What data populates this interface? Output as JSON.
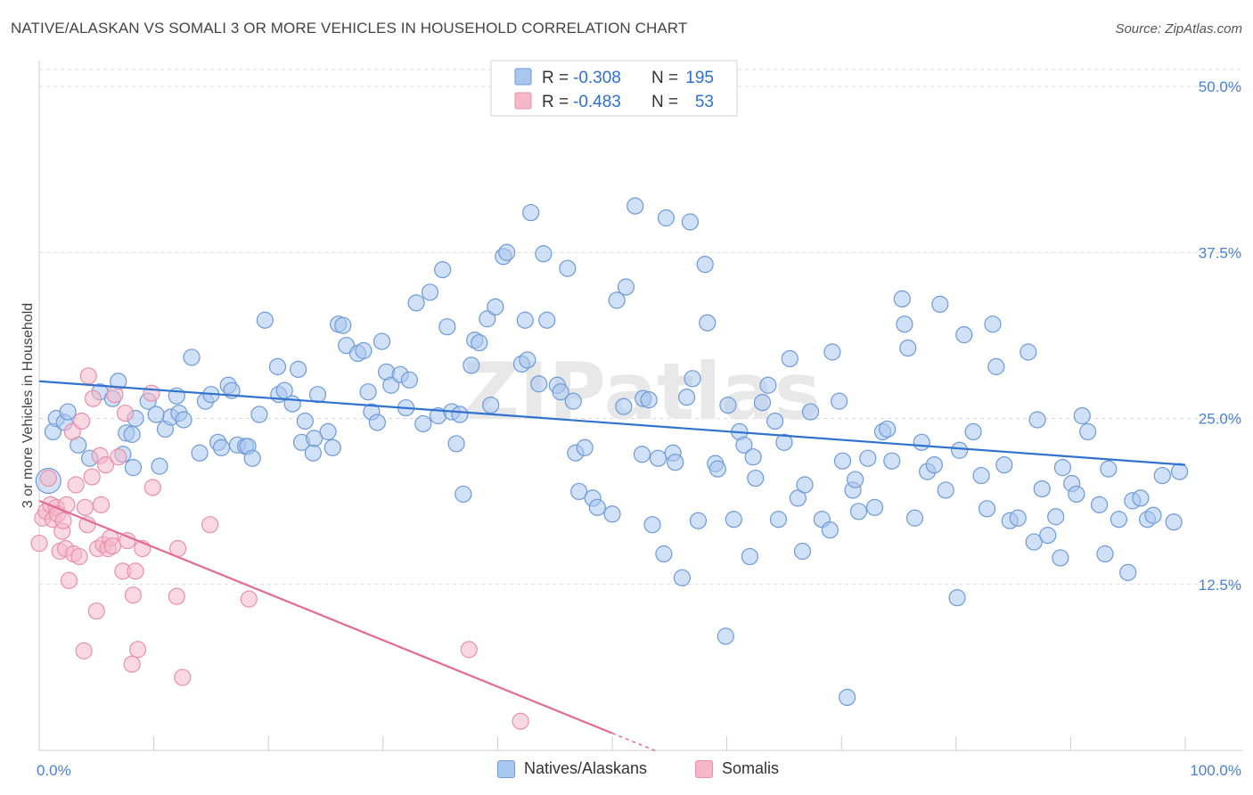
{
  "title": "NATIVE/ALASKAN VS SOMALI 3 OR MORE VEHICLES IN HOUSEHOLD CORRELATION CHART",
  "source": "Source: ZipAtlas.com",
  "watermark": "ZIPatlas",
  "colors": {
    "blue_fill": "#a9c6ee",
    "blue_stroke": "#6d9ad8",
    "blue_line": "#2f73cf",
    "pink_fill": "#f6b8c9",
    "pink_stroke": "#e890aa",
    "pink_line": "#e56a93",
    "grid": "#d9d9d9",
    "tick_text": "#4a7fd4"
  },
  "legend": {
    "r_label": "R =",
    "n_label": "N =",
    "rows": [
      {
        "r": "-0.308",
        "n": "195",
        "series": "blue"
      },
      {
        "r": "-0.483",
        "n": "53",
        "series": "pink"
      }
    ]
  },
  "bottom_legend": {
    "blue": "Natives/Alaskans",
    "pink": "Somalis"
  },
  "chart_data": {
    "type": "scatter",
    "title": "NATIVE/ALASKAN VS SOMALI 3 OR MORE VEHICLES IN HOUSEHOLD CORRELATION CHART",
    "xlabel": "",
    "ylabel": "3 or more Vehicles in Household",
    "xlim": [
      0,
      100
    ],
    "ylim": [
      0,
      50
    ],
    "x_tick_labels": {
      "left": "0.0%",
      "right": "100.0%"
    },
    "y_ticks": [
      {
        "value": 12.5,
        "label": "12.5%"
      },
      {
        "value": 25.0,
        "label": "25.0%"
      },
      {
        "value": 37.5,
        "label": "37.5%"
      },
      {
        "value": 50.0,
        "label": "50.0%"
      }
    ],
    "grid": true,
    "legend_position": "top-center",
    "series": [
      {
        "name": "Natives/Alaskans",
        "color": "#a9c6ee",
        "r": -0.308,
        "n": 195,
        "trend": {
          "x": [
            0,
            100
          ],
          "y": [
            27.8,
            21.5
          ]
        },
        "points": [
          [
            1.2,
            24.0
          ],
          [
            1.5,
            25.0
          ],
          [
            2.2,
            24.7
          ],
          [
            2.5,
            25.5
          ],
          [
            3.4,
            23.0
          ],
          [
            4.4,
            22.0
          ],
          [
            5.3,
            27.0
          ],
          [
            6.4,
            26.5
          ],
          [
            6.9,
            27.8
          ],
          [
            7.3,
            22.3
          ],
          [
            7.6,
            23.9
          ],
          [
            8.1,
            23.8
          ],
          [
            8.2,
            21.3
          ],
          [
            8.4,
            25.0
          ],
          [
            9.5,
            26.3
          ],
          [
            10.2,
            25.3
          ],
          [
            10.5,
            21.4
          ],
          [
            11.0,
            24.2
          ],
          [
            11.5,
            25.1
          ],
          [
            12.0,
            26.7
          ],
          [
            12.2,
            25.4
          ],
          [
            12.6,
            24.9
          ],
          [
            13.3,
            29.6
          ],
          [
            14.0,
            22.4
          ],
          [
            14.5,
            26.3
          ],
          [
            15.0,
            26.8
          ],
          [
            15.6,
            23.2
          ],
          [
            15.9,
            22.8
          ],
          [
            16.5,
            27.5
          ],
          [
            16.8,
            27.1
          ],
          [
            17.3,
            23.0
          ],
          [
            18.0,
            22.9
          ],
          [
            18.2,
            22.9
          ],
          [
            18.6,
            22.0
          ],
          [
            19.2,
            25.3
          ],
          [
            19.7,
            32.4
          ],
          [
            20.8,
            28.9
          ],
          [
            20.9,
            26.8
          ],
          [
            21.4,
            27.1
          ],
          [
            22.1,
            26.1
          ],
          [
            22.6,
            28.7
          ],
          [
            22.9,
            23.2
          ],
          [
            23.2,
            24.8
          ],
          [
            23.9,
            22.4
          ],
          [
            24.0,
            23.5
          ],
          [
            24.3,
            26.8
          ],
          [
            25.2,
            24.0
          ],
          [
            25.6,
            22.8
          ],
          [
            26.1,
            32.1
          ],
          [
            26.5,
            32.0
          ],
          [
            26.8,
            30.5
          ],
          [
            27.8,
            29.9
          ],
          [
            28.3,
            30.1
          ],
          [
            28.7,
            27.0
          ],
          [
            29.0,
            25.5
          ],
          [
            29.5,
            24.7
          ],
          [
            29.9,
            30.8
          ],
          [
            30.3,
            28.5
          ],
          [
            30.7,
            27.5
          ],
          [
            31.5,
            28.3
          ],
          [
            32.0,
            25.8
          ],
          [
            32.3,
            27.9
          ],
          [
            32.9,
            33.7
          ],
          [
            33.5,
            24.6
          ],
          [
            34.1,
            34.5
          ],
          [
            34.8,
            25.2
          ],
          [
            35.2,
            36.2
          ],
          [
            35.6,
            31.9
          ],
          [
            36.0,
            25.5
          ],
          [
            36.4,
            23.1
          ],
          [
            36.7,
            25.3
          ],
          [
            37.0,
            19.3
          ],
          [
            37.7,
            29.0
          ],
          [
            38.0,
            30.9
          ],
          [
            38.4,
            30.7
          ],
          [
            39.1,
            32.5
          ],
          [
            39.4,
            26.0
          ],
          [
            39.8,
            33.4
          ],
          [
            40.5,
            37.2
          ],
          [
            40.8,
            37.5
          ],
          [
            42.1,
            29.1
          ],
          [
            42.4,
            32.4
          ],
          [
            42.6,
            29.4
          ],
          [
            42.9,
            40.5
          ],
          [
            43.6,
            27.6
          ],
          [
            44.0,
            37.4
          ],
          [
            44.3,
            32.4
          ],
          [
            45.2,
            27.5
          ],
          [
            45.5,
            27.0
          ],
          [
            46.1,
            36.3
          ],
          [
            46.6,
            26.3
          ],
          [
            46.8,
            22.4
          ],
          [
            47.1,
            19.5
          ],
          [
            47.6,
            22.8
          ],
          [
            48.3,
            19.0
          ],
          [
            48.7,
            18.3
          ],
          [
            50.0,
            17.8
          ],
          [
            50.4,
            33.9
          ],
          [
            51.0,
            25.9
          ],
          [
            51.2,
            34.9
          ],
          [
            52.0,
            41.0
          ],
          [
            52.6,
            22.3
          ],
          [
            52.7,
            26.5
          ],
          [
            53.2,
            26.4
          ],
          [
            53.5,
            17.0
          ],
          [
            54.0,
            22.0
          ],
          [
            54.5,
            14.8
          ],
          [
            54.7,
            40.1
          ],
          [
            55.3,
            22.4
          ],
          [
            55.5,
            21.7
          ],
          [
            56.1,
            13.0
          ],
          [
            56.5,
            26.6
          ],
          [
            56.8,
            39.8
          ],
          [
            57.0,
            28.0
          ],
          [
            57.5,
            17.3
          ],
          [
            58.1,
            36.6
          ],
          [
            58.3,
            32.2
          ],
          [
            59.0,
            21.6
          ],
          [
            59.2,
            21.2
          ],
          [
            59.9,
            8.6
          ],
          [
            60.1,
            26.0
          ],
          [
            60.6,
            17.4
          ],
          [
            61.1,
            24.0
          ],
          [
            61.5,
            23.0
          ],
          [
            62.0,
            14.6
          ],
          [
            62.3,
            22.1
          ],
          [
            62.5,
            20.5
          ],
          [
            63.1,
            26.2
          ],
          [
            63.6,
            27.5
          ],
          [
            64.2,
            24.8
          ],
          [
            64.5,
            17.4
          ],
          [
            65.0,
            23.2
          ],
          [
            65.5,
            29.5
          ],
          [
            66.2,
            19.0
          ],
          [
            66.6,
            15.0
          ],
          [
            66.8,
            20.0
          ],
          [
            67.3,
            25.5
          ],
          [
            68.3,
            17.4
          ],
          [
            69.0,
            16.6
          ],
          [
            69.2,
            30.0
          ],
          [
            69.8,
            26.3
          ],
          [
            70.1,
            21.8
          ],
          [
            70.5,
            4.0
          ],
          [
            71.0,
            19.6
          ],
          [
            71.2,
            20.4
          ],
          [
            71.5,
            18.0
          ],
          [
            72.3,
            22.0
          ],
          [
            72.9,
            18.3
          ],
          [
            73.6,
            24.0
          ],
          [
            74.0,
            24.2
          ],
          [
            74.4,
            21.8
          ],
          [
            75.3,
            34.0
          ],
          [
            75.5,
            32.1
          ],
          [
            75.8,
            30.3
          ],
          [
            76.4,
            17.5
          ],
          [
            77.0,
            23.2
          ],
          [
            77.5,
            21.0
          ],
          [
            78.1,
            21.5
          ],
          [
            78.6,
            33.6
          ],
          [
            79.1,
            19.6
          ],
          [
            80.1,
            11.5
          ],
          [
            80.3,
            22.6
          ],
          [
            80.7,
            31.3
          ],
          [
            81.5,
            24.0
          ],
          [
            82.2,
            20.7
          ],
          [
            82.7,
            18.2
          ],
          [
            83.2,
            32.1
          ],
          [
            83.5,
            28.9
          ],
          [
            84.2,
            21.5
          ],
          [
            84.7,
            17.3
          ],
          [
            85.4,
            17.5
          ],
          [
            86.3,
            30.0
          ],
          [
            86.8,
            15.7
          ],
          [
            87.1,
            24.9
          ],
          [
            87.5,
            19.7
          ],
          [
            88.0,
            16.2
          ],
          [
            88.7,
            17.6
          ],
          [
            89.1,
            14.5
          ],
          [
            89.3,
            21.3
          ],
          [
            90.1,
            20.1
          ],
          [
            90.5,
            19.3
          ],
          [
            91.0,
            25.2
          ],
          [
            91.5,
            24.0
          ],
          [
            92.5,
            18.5
          ],
          [
            93.0,
            14.8
          ],
          [
            93.3,
            21.2
          ],
          [
            94.2,
            17.4
          ],
          [
            95.0,
            13.4
          ],
          [
            95.4,
            18.8
          ],
          [
            96.1,
            19.0
          ],
          [
            96.7,
            17.4
          ],
          [
            97.2,
            17.7
          ],
          [
            98.0,
            20.7
          ],
          [
            99.0,
            17.2
          ],
          [
            99.5,
            21.0
          ]
        ]
      },
      {
        "name": "Somalis",
        "color": "#f6b8c9",
        "r": -0.483,
        "n": 53,
        "trend": {
          "x": [
            0,
            50
          ],
          "y": [
            18.8,
            1.3
          ]
        },
        "trend_dashed": {
          "x": [
            50,
            54
          ],
          "y": [
            1.3,
            -0.1
          ]
        },
        "points": [
          [
            0.0,
            15.6
          ],
          [
            0.3,
            17.5
          ],
          [
            0.6,
            18.0
          ],
          [
            0.8,
            20.5
          ],
          [
            1.0,
            18.5
          ],
          [
            1.2,
            17.4
          ],
          [
            1.5,
            18.3
          ],
          [
            1.6,
            17.8
          ],
          [
            1.8,
            15.0
          ],
          [
            2.0,
            16.5
          ],
          [
            2.1,
            17.3
          ],
          [
            2.3,
            15.2
          ],
          [
            2.4,
            18.5
          ],
          [
            2.6,
            12.8
          ],
          [
            2.9,
            24.0
          ],
          [
            3.0,
            14.8
          ],
          [
            3.2,
            20.0
          ],
          [
            3.5,
            14.6
          ],
          [
            3.7,
            24.8
          ],
          [
            3.9,
            7.5
          ],
          [
            4.0,
            18.3
          ],
          [
            4.2,
            17.0
          ],
          [
            4.3,
            28.2
          ],
          [
            4.6,
            20.6
          ],
          [
            4.7,
            26.5
          ],
          [
            5.0,
            10.5
          ],
          [
            5.1,
            15.2
          ],
          [
            5.3,
            22.2
          ],
          [
            5.4,
            18.5
          ],
          [
            5.6,
            15.5
          ],
          [
            5.8,
            21.5
          ],
          [
            6.0,
            15.2
          ],
          [
            6.2,
            16.0
          ],
          [
            6.4,
            15.4
          ],
          [
            6.6,
            26.8
          ],
          [
            6.9,
            22.1
          ],
          [
            7.3,
            13.5
          ],
          [
            7.5,
            25.4
          ],
          [
            7.7,
            15.8
          ],
          [
            8.1,
            6.5
          ],
          [
            8.2,
            11.7
          ],
          [
            8.4,
            13.5
          ],
          [
            8.6,
            7.6
          ],
          [
            9.0,
            15.2
          ],
          [
            9.8,
            26.9
          ],
          [
            9.9,
            19.8
          ],
          [
            12.0,
            11.6
          ],
          [
            12.1,
            15.2
          ],
          [
            12.5,
            5.5
          ],
          [
            14.9,
            17.0
          ],
          [
            18.3,
            11.4
          ],
          [
            37.5,
            7.6
          ],
          [
            42.0,
            2.2
          ]
        ]
      }
    ]
  }
}
